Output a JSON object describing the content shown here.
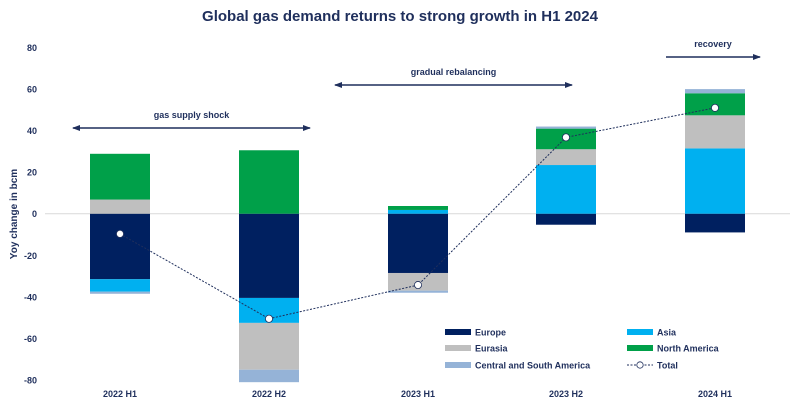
{
  "chart_data": {
    "type": "bar",
    "stacked": true,
    "title": "Global gas demand returns to strong growth in H1 2024",
    "xlabel": "",
    "ylabel": "Yoy change in bcm",
    "ylim": [
      -80,
      80
    ],
    "yticks": [
      80,
      60,
      40,
      20,
      0,
      -20,
      -40,
      -60,
      -80
    ],
    "grid": false,
    "legend_position": "bottom-right",
    "categories": [
      "2022 H1",
      "2022 H2",
      "2023 H1",
      "2023 H2",
      "2024 H1"
    ],
    "series": [
      {
        "name": "Europe",
        "color": "#002060",
        "values": [
          -31.5,
          -40.5,
          -28.5,
          -5.3,
          -9
        ]
      },
      {
        "name": "Asia",
        "color": "#00b0f0",
        "values": [
          -6,
          -12,
          1.8,
          23.4,
          31.4
        ]
      },
      {
        "name": "Eurasia",
        "color": "#bfbfbf",
        "values": [
          6.8,
          -22.5,
          -8.5,
          7.6,
          15.9
        ]
      },
      {
        "name": "North America",
        "color": "#00a049",
        "values": [
          22,
          30.5,
          1.9,
          9.9,
          10.6
        ]
      },
      {
        "name": "Central and South America",
        "color": "#95b3d7",
        "values": [
          -1,
          -6,
          -1,
          1,
          2
        ]
      }
    ],
    "total": {
      "name": "Total",
      "values": [
        -9.7,
        -50.5,
        -34.3,
        36.7,
        50.9
      ]
    },
    "annotations": [
      {
        "text": "gas supply shock",
        "from": "2022 H1",
        "to": "2022 H2",
        "arrow": "both"
      },
      {
        "text": "gradual rebalancing",
        "from": "2023 H1",
        "to": "2023 H2",
        "arrow": "both"
      },
      {
        "text": "recovery",
        "from": "2024 H1",
        "to": "2024 H1",
        "arrow": "right"
      }
    ]
  }
}
